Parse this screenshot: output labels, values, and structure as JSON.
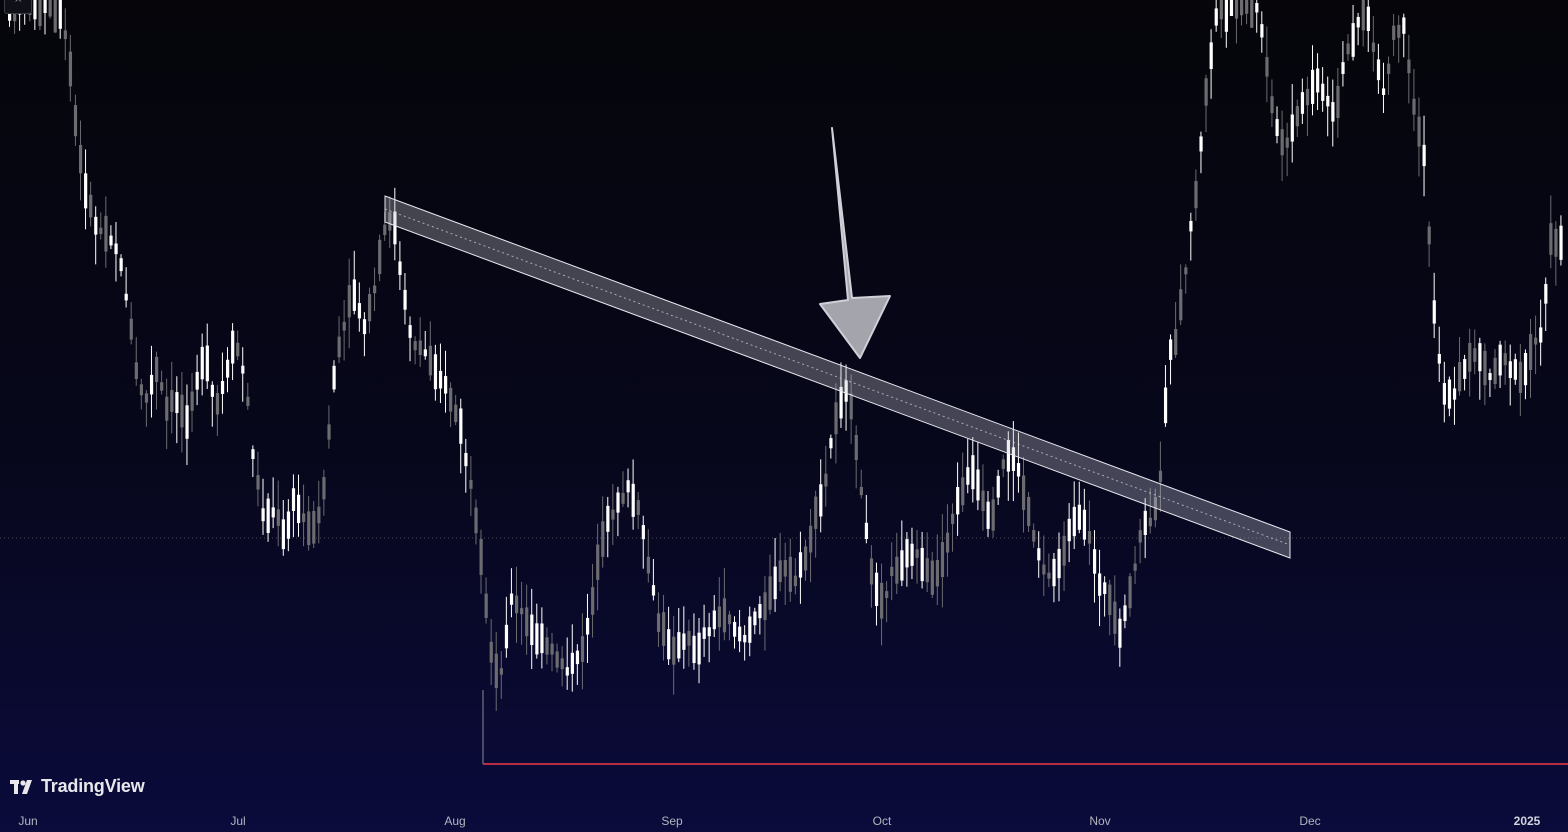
{
  "chart_data": {
    "type": "candlestick",
    "title": "",
    "xlabel": "",
    "ylabel": "",
    "x_tick_labels": [
      "Jun",
      "Jul",
      "Aug",
      "Sep",
      "Oct",
      "Nov",
      "Dec",
      "2025"
    ],
    "bold_tick_labels": [
      "2025"
    ],
    "grid": false,
    "legend": "none",
    "colors": {
      "background_top": "#05050a",
      "background_bottom": "#0a0a3a",
      "candle_up": "#ffffff",
      "candle_down": "#6b6b70",
      "support_line": "#f23645",
      "channel_fill": "#c8c8d0",
      "arrow_fill": "#a0a0a8",
      "dotted_level": "#4a4a5a"
    },
    "series_shape_y": [
      5,
      5,
      5,
      5,
      5,
      5,
      50,
      150,
      200,
      230,
      230,
      250,
      300,
      380,
      400,
      370,
      410,
      400,
      420,
      380,
      360,
      410,
      380,
      340,
      380,
      470,
      520,
      510,
      540,
      500,
      520,
      530,
      490,
      380,
      330,
      290,
      330,
      300,
      240,
      210,
      290,
      340,
      350,
      360,
      380,
      400,
      430,
      490,
      560,
      650,
      680,
      600,
      610,
      630,
      640,
      650,
      660,
      670,
      660,
      620,
      560,
      520,
      500,
      490,
      510,
      560,
      620,
      640,
      650,
      640,
      650,
      630,
      620,
      610,
      630,
      640,
      620,
      600,
      580,
      570,
      580,
      560,
      520,
      490,
      420,
      390,
      420,
      520,
      580,
      600,
      570,
      560,
      550,
      570,
      580,
      560,
      520,
      490,
      470,
      500,
      530,
      470,
      450,
      480,
      520,
      560,
      580,
      560,
      530,
      520,
      540,
      580,
      600,
      640,
      600,
      540,
      520,
      510,
      360,
      330,
      250,
      180,
      80,
      10,
      5,
      5,
      5,
      5,
      60,
      130,
      150,
      120,
      100,
      80,
      100,
      120,
      60,
      30,
      5,
      50,
      100,
      30,
      30,
      110,
      150,
      300,
      390,
      400,
      370,
      350,
      360,
      380,
      350,
      370,
      380,
      350,
      330,
      240,
      240
    ]
  }
}
